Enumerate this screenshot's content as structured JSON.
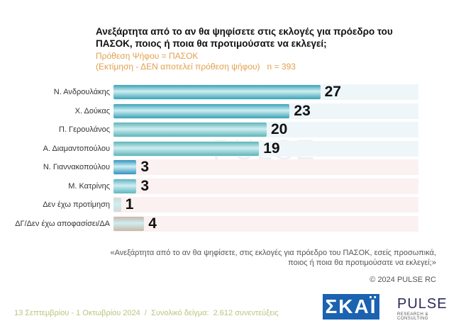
{
  "chart_data": {
    "type": "bar",
    "title": "Ανεξάρτητα από το αν θα ψηφίσετε στις εκλογές για πρόεδρο του ΠΑΣΟΚ, ποιος ή ποια θα προτιμούσατε να εκλεγεί;",
    "subtitle": "Πρόθεση Ψήφου = ΠΑΣΟΚ",
    "note": "(Εκτίμηση - ΔΕΝ αποτελεί πρόθεση ψήφου)   n = 393",
    "categories": [
      "Ν. Ανδρουλάκης",
      "Χ. Δούκας",
      "Π. Γερουλάνος",
      "Α. Διαμαντοπούλου",
      "Ν. Γιαννακοπούλου",
      "Μ. Κατρίνης",
      "Δεν έχω προτίμηση",
      "ΔΓ/Δεν έχω αποφασίσει/ΔΑ"
    ],
    "values": [
      27,
      23,
      20,
      19,
      3,
      3,
      1,
      4
    ],
    "colors": [
      "#3aa3b6",
      "#3aa3b6",
      "#5db5b8",
      "#5db5b8",
      "#2f95c0",
      "#5cb6c0",
      "#d8d8d8",
      "#c8b8a8"
    ],
    "footnote": "«Ανεξάρτητα από το αν θα ψηφίσετε, στις εκλογές για πρόεδρο του ΠΑΣΟΚ, εσείς προσωπικά, ποιος ή ποια θα προτιμούσατε να εκλεγεί;»",
    "copyright": "© 2024 PULSE RC",
    "fieldwork": "13 Σεπτεμβρίου - 1 Οκτωβρίου 2024  /  Συνολικό δείγμα:  2.612 συνεντεύξεις",
    "watermark": "PULSE",
    "logos": [
      "ΣΚΑΪ",
      "PULSE",
      "RESEARCH & CONSULTING"
    ]
  }
}
